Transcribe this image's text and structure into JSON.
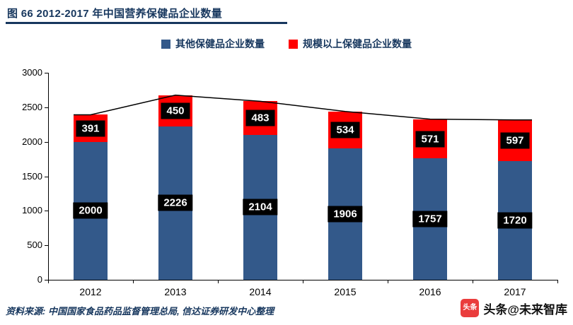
{
  "figure": {
    "title": "图 66 2012-2017 年中国营养保健品企业数量",
    "source": "资料来源: 中国国家食品药品监督管理总局, 信达证券研发中心整理",
    "watermark": {
      "icon": "toutiao-logo",
      "icon_text": "头条",
      "label": "头条@未来智库"
    }
  },
  "colors": {
    "title_navy": "#17375E",
    "bar_blue": "#33598A",
    "bar_red": "#FF0000",
    "label_box_bg": "#000000",
    "label_box_text": "#FFFFFF",
    "totals_line": "#000000",
    "watermark_red": "#EA3D3D"
  },
  "chart_data": {
    "type": "bar",
    "stacked": true,
    "title": "图 66 2012-2017 年中国营养保健品企业数量",
    "categories": [
      "2012",
      "2013",
      "2014",
      "2015",
      "2016",
      "2017"
    ],
    "series": [
      {
        "name": "其他保健品企业数量",
        "color": "#33598A",
        "values": [
          2000,
          2226,
          2104,
          1906,
          1757,
          1720
        ]
      },
      {
        "name": "规模以上保健品企业数量",
        "color": "#FF0000",
        "values": [
          391,
          450,
          483,
          534,
          571,
          597
        ]
      }
    ],
    "line_totals": [
      2391,
      2676,
      2587,
      2440,
      2328,
      2317
    ],
    "xlabel": "",
    "ylabel": "",
    "ylim": [
      0,
      3000
    ],
    "yticks": [
      0,
      500,
      1000,
      1500,
      2000,
      2500,
      3000
    ],
    "grid": false,
    "legend_position": "top",
    "data_labels": {
      "background": "#000000",
      "text_color": "#FFFFFF"
    }
  }
}
